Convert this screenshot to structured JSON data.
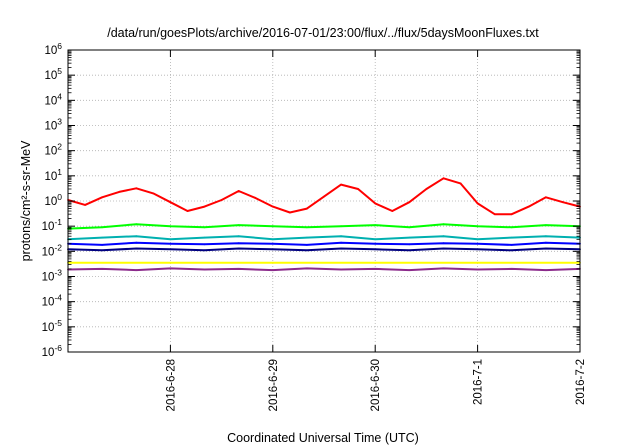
{
  "chart_data": {
    "type": "line",
    "title": "/data/run/goesPlots/archive/2016-07-01/23:00/flux/../flux/5daysMoonFluxes.txt",
    "xlabel": "Coordinated Universal Time (UTC)",
    "ylabel": "protons/cm²-s-sr-MeV",
    "yscale": "log",
    "ylim": [
      1e-06,
      1000000.0
    ],
    "xlim": [
      "2016-06-27 00:00",
      "2016-07-02 00:00"
    ],
    "xtick_labels": [
      "2016-6-28",
      "2016-6-29",
      "2016-6-30",
      "2016-7-1",
      "2016-7-2"
    ],
    "ytick_labels": [
      {
        "base": "10",
        "exp": "-6"
      },
      {
        "base": "10",
        "exp": "-5"
      },
      {
        "base": "10",
        "exp": "-4"
      },
      {
        "base": "10",
        "exp": "-3"
      },
      {
        "base": "10",
        "exp": "-2"
      },
      {
        "base": "10",
        "exp": "-1"
      },
      {
        "base": "10",
        "exp": "0"
      },
      {
        "base": "10",
        "exp": "1"
      },
      {
        "base": "10",
        "exp": "2"
      },
      {
        "base": "10",
        "exp": "3"
      },
      {
        "base": "10",
        "exp": "4"
      },
      {
        "base": "10",
        "exp": "5"
      },
      {
        "base": "10",
        "exp": "6"
      }
    ],
    "grid": true,
    "series": [
      {
        "color": "#ff0000",
        "x": [
          "2016-06-27 00:00",
          "2016-06-27 04:00",
          "2016-06-27 08:00",
          "2016-06-27 12:00",
          "2016-06-27 16:00",
          "2016-06-27 20:00",
          "2016-06-28 00:00",
          "2016-06-28 04:00",
          "2016-06-28 08:00",
          "2016-06-28 12:00",
          "2016-06-28 16:00",
          "2016-06-28 20:00",
          "2016-06-29 00:00",
          "2016-06-29 04:00",
          "2016-06-29 08:00",
          "2016-06-29 12:00",
          "2016-06-29 16:00",
          "2016-06-29 20:00",
          "2016-06-30 00:00",
          "2016-06-30 04:00",
          "2016-06-30 08:00",
          "2016-06-30 12:00",
          "2016-06-30 16:00",
          "2016-06-30 20:00",
          "2016-07-01 00:00",
          "2016-07-01 04:00",
          "2016-07-01 08:00",
          "2016-07-01 12:00",
          "2016-07-01 16:00",
          "2016-07-01 20:00",
          "2016-07-02 00:00"
        ],
        "values": [
          1.1,
          0.7,
          1.4,
          2.3,
          3.2,
          2.0,
          0.9,
          0.4,
          0.6,
          1.1,
          2.5,
          1.3,
          0.6,
          0.35,
          0.5,
          1.5,
          4.5,
          3.0,
          0.8,
          0.4,
          0.9,
          3.0,
          8.0,
          5.0,
          0.8,
          0.3,
          0.3,
          0.6,
          1.4,
          0.9,
          0.6
        ]
      },
      {
        "color": "#00ff00",
        "x": [
          "2016-06-27 00:00",
          "2016-06-27 08:00",
          "2016-06-27 16:00",
          "2016-06-28 00:00",
          "2016-06-28 08:00",
          "2016-06-28 16:00",
          "2016-06-29 00:00",
          "2016-06-29 08:00",
          "2016-06-29 16:00",
          "2016-06-30 00:00",
          "2016-06-30 08:00",
          "2016-06-30 16:00",
          "2016-07-01 00:00",
          "2016-07-01 08:00",
          "2016-07-01 16:00",
          "2016-07-02 00:00"
        ],
        "values": [
          0.08,
          0.09,
          0.12,
          0.1,
          0.09,
          0.11,
          0.1,
          0.09,
          0.1,
          0.11,
          0.09,
          0.12,
          0.1,
          0.09,
          0.11,
          0.1
        ]
      },
      {
        "color": "#00b0b0",
        "x": [
          "2016-06-27 00:00",
          "2016-06-27 08:00",
          "2016-06-27 16:00",
          "2016-06-28 00:00",
          "2016-06-28 08:00",
          "2016-06-28 16:00",
          "2016-06-29 00:00",
          "2016-06-29 08:00",
          "2016-06-29 16:00",
          "2016-06-30 00:00",
          "2016-06-30 08:00",
          "2016-06-30 16:00",
          "2016-07-01 00:00",
          "2016-07-01 08:00",
          "2016-07-01 16:00",
          "2016-07-02 00:00"
        ],
        "values": [
          0.03,
          0.035,
          0.04,
          0.03,
          0.035,
          0.04,
          0.03,
          0.035,
          0.04,
          0.03,
          0.035,
          0.04,
          0.03,
          0.035,
          0.04,
          0.035
        ]
      },
      {
        "color": "#0000ff",
        "x": [
          "2016-06-27 00:00",
          "2016-06-27 08:00",
          "2016-06-27 16:00",
          "2016-06-28 00:00",
          "2016-06-28 08:00",
          "2016-06-28 16:00",
          "2016-06-29 00:00",
          "2016-06-29 08:00",
          "2016-06-29 16:00",
          "2016-06-30 00:00",
          "2016-06-30 08:00",
          "2016-06-30 16:00",
          "2016-07-01 00:00",
          "2016-07-01 08:00",
          "2016-07-01 16:00",
          "2016-07-02 00:00"
        ],
        "values": [
          0.02,
          0.018,
          0.022,
          0.02,
          0.019,
          0.021,
          0.02,
          0.018,
          0.022,
          0.02,
          0.019,
          0.021,
          0.02,
          0.018,
          0.022,
          0.02
        ]
      },
      {
        "color": "#000080",
        "x": [
          "2016-06-27 00:00",
          "2016-06-27 08:00",
          "2016-06-27 16:00",
          "2016-06-28 00:00",
          "2016-06-28 08:00",
          "2016-06-28 16:00",
          "2016-06-29 00:00",
          "2016-06-29 08:00",
          "2016-06-29 16:00",
          "2016-06-30 00:00",
          "2016-06-30 08:00",
          "2016-06-30 16:00",
          "2016-07-01 00:00",
          "2016-07-01 08:00",
          "2016-07-01 16:00",
          "2016-07-02 00:00"
        ],
        "values": [
          0.012,
          0.011,
          0.013,
          0.012,
          0.011,
          0.013,
          0.012,
          0.011,
          0.013,
          0.012,
          0.011,
          0.013,
          0.012,
          0.011,
          0.013,
          0.012
        ]
      },
      {
        "color": "#ffff00",
        "x": [
          "2016-06-27 00:00",
          "2016-06-28 00:00",
          "2016-06-29 00:00",
          "2016-06-30 00:00",
          "2016-07-01 00:00",
          "2016-07-02 00:00"
        ],
        "values": [
          0.0035,
          0.0035,
          0.0035,
          0.0035,
          0.0035,
          0.0035
        ]
      },
      {
        "color": "#8b2a8b",
        "x": [
          "2016-06-27 00:00",
          "2016-06-27 08:00",
          "2016-06-27 16:00",
          "2016-06-28 00:00",
          "2016-06-28 08:00",
          "2016-06-28 16:00",
          "2016-06-29 00:00",
          "2016-06-29 08:00",
          "2016-06-29 16:00",
          "2016-06-30 00:00",
          "2016-06-30 08:00",
          "2016-06-30 16:00",
          "2016-07-01 00:00",
          "2016-07-01 08:00",
          "2016-07-01 16:00",
          "2016-07-02 00:00"
        ],
        "values": [
          0.0019,
          0.002,
          0.0018,
          0.0021,
          0.0019,
          0.002,
          0.0018,
          0.0021,
          0.0019,
          0.002,
          0.0018,
          0.0021,
          0.0019,
          0.002,
          0.0018,
          0.002
        ]
      }
    ]
  }
}
